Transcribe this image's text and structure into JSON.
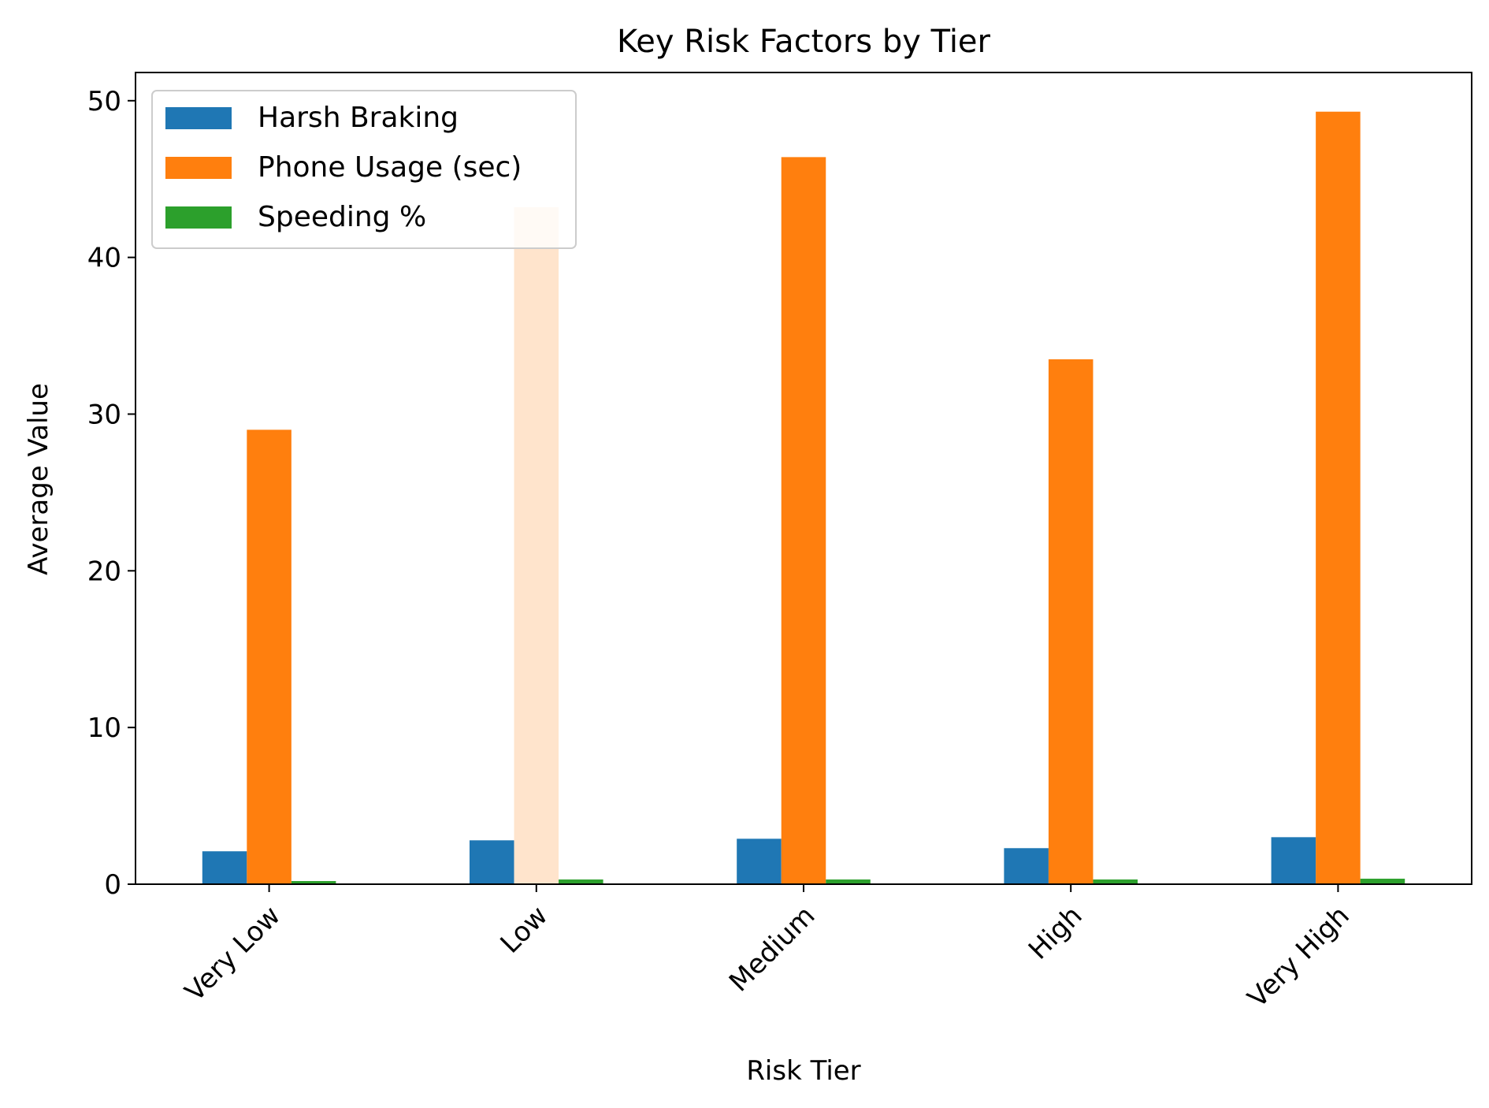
{
  "chart_data": {
    "type": "bar",
    "title": "Key Risk Factors by Tier",
    "xlabel": "Risk Tier",
    "ylabel": "Average Value",
    "categories": [
      "Very Low",
      "Low",
      "Medium",
      "High",
      "Very High"
    ],
    "series": [
      {
        "name": "Harsh Braking",
        "color": "#1f77b4",
        "values": [
          2.1,
          2.8,
          2.9,
          2.3,
          3.0
        ]
      },
      {
        "name": "Phone Usage (sec)",
        "color": "#ff7f0e",
        "values": [
          29.0,
          43.2,
          46.4,
          33.5,
          49.3
        ]
      },
      {
        "name": "Speeding %",
        "color": "#2ca02c",
        "values": [
          0.2,
          0.3,
          0.3,
          0.3,
          0.35
        ]
      }
    ],
    "ylim": [
      0,
      51.8
    ],
    "yticks": [
      0,
      10,
      20,
      30,
      40,
      50
    ],
    "grid": false,
    "legend_position": "upper-left",
    "highlight": {
      "series": 1,
      "category": 1,
      "color": "#ffe4cc"
    }
  }
}
